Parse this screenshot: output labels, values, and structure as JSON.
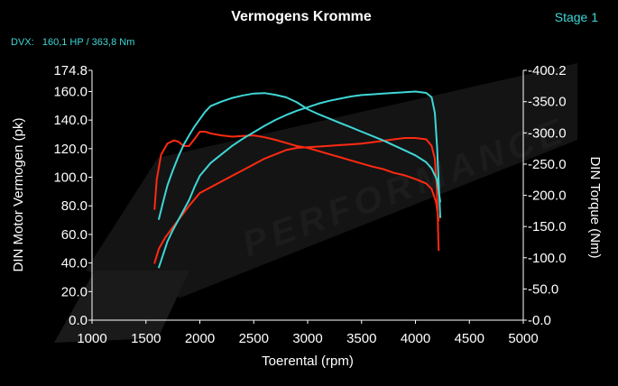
{
  "chart_data": {
    "type": "line",
    "title": "Vermogens Kromme",
    "stage_label": "Stage 1",
    "info_label": "DVX:   160,1 HP / 363,8 Nm",
    "xlabel": "Toerental (rpm)",
    "ylabel_left": "DIN Motor Vermogen (pk)",
    "ylabel_right": "DIN Torque (Nm)",
    "xlim": [
      1000,
      5000
    ],
    "ylim_left": [
      0,
      174.8
    ],
    "ylim_right": [
      0,
      400.2
    ],
    "x_ticks": [
      "1000",
      "1500",
      "2000",
      "2500",
      "3000",
      "3500",
      "4000",
      "4500",
      "5000"
    ],
    "y_ticks_left": [
      "174.8",
      "160.0",
      "140.0",
      "120.0",
      "100.0",
      "80.0",
      "60.0",
      "40.0",
      "20.0",
      "0.0"
    ],
    "y_ticks_right": [
      "400.2",
      "350.0",
      "300.0",
      "250.0",
      "200.0",
      "150.0",
      "100.0",
      "50.0",
      "0.0"
    ],
    "grid": false,
    "watermark": "PERFORMANCE",
    "series": [
      {
        "axis": "left",
        "color": "#ff2a12",
        "x": [
          1580,
          1620,
          1680,
          1750,
          1800,
          1850,
          1900,
          2000,
          2100,
          2200,
          2300,
          2400,
          2500,
          2600,
          2700,
          2800,
          2900,
          3000,
          3100,
          3200,
          3300,
          3400,
          3500,
          3600,
          3700,
          3800,
          3900,
          4000,
          4100,
          4150,
          4180,
          4200,
          4215
        ],
        "values": [
          40,
          50,
          58,
          65,
          70,
          75,
          80,
          89,
          93,
          97,
          101,
          105,
          109,
          113,
          116,
          119,
          120.5,
          121,
          121.5,
          122,
          122.5,
          123,
          123.5,
          124.5,
          125.5,
          126.5,
          127.5,
          127.5,
          126.5,
          122,
          113,
          90,
          49
        ]
      },
      {
        "axis": "right",
        "color": "#ff2a12",
        "x": [
          1580,
          1600,
          1640,
          1700,
          1760,
          1800,
          1850,
          1900,
          1950,
          2000,
          2050,
          2100,
          2200,
          2300,
          2400,
          2500,
          2600,
          2700,
          2800,
          2900,
          3000,
          3100,
          3200,
          3300,
          3400,
          3500,
          3600,
          3700,
          3800,
          3900,
          4000,
          4100,
          4150,
          4190,
          4215
        ],
        "values": [
          178,
          225,
          265,
          283,
          288,
          286,
          279,
          279,
          290,
          302,
          302,
          299,
          296,
          294,
          295,
          296,
          293,
          289,
          284,
          279,
          276,
          271,
          266,
          261,
          256,
          251,
          246,
          242,
          236,
          232,
          226,
          219,
          210,
          190,
          160
        ]
      },
      {
        "axis": "left",
        "color": "#3fd6d6",
        "x": [
          1620,
          1660,
          1700,
          1750,
          1800,
          1850,
          1900,
          1950,
          2000,
          2100,
          2200,
          2300,
          2400,
          2500,
          2600,
          2700,
          2800,
          2900,
          3000,
          3100,
          3200,
          3300,
          3400,
          3500,
          3600,
          3700,
          3800,
          3900,
          4000,
          4100,
          4150,
          4180,
          4200,
          4230
        ],
        "values": [
          37,
          46,
          55,
          63,
          70,
          77,
          84,
          93,
          101,
          110,
          116,
          122,
          127,
          131.5,
          136,
          140,
          143.5,
          146.5,
          149,
          151.5,
          153.5,
          155,
          156.5,
          157.5,
          158,
          158.5,
          159,
          159.5,
          160,
          159,
          156,
          145,
          122,
          72
        ]
      },
      {
        "axis": "right",
        "color": "#3fd6d6",
        "x": [
          1620,
          1660,
          1700,
          1750,
          1800,
          1850,
          1900,
          1950,
          2000,
          2050,
          2100,
          2200,
          2300,
          2400,
          2500,
          2600,
          2700,
          2800,
          2900,
          3000,
          3100,
          3200,
          3300,
          3400,
          3500,
          3600,
          3700,
          3800,
          3900,
          4000,
          4100,
          4150,
          4200,
          4230
        ],
        "values": [
          162,
          190,
          216,
          240,
          262,
          281,
          296,
          310,
          322,
          334,
          343,
          350,
          356,
          360,
          363,
          363.8,
          361,
          357,
          349,
          338,
          330,
          323,
          316,
          309,
          302,
          295,
          288,
          280,
          272,
          264,
          253,
          243,
          225,
          190
        ]
      }
    ]
  }
}
